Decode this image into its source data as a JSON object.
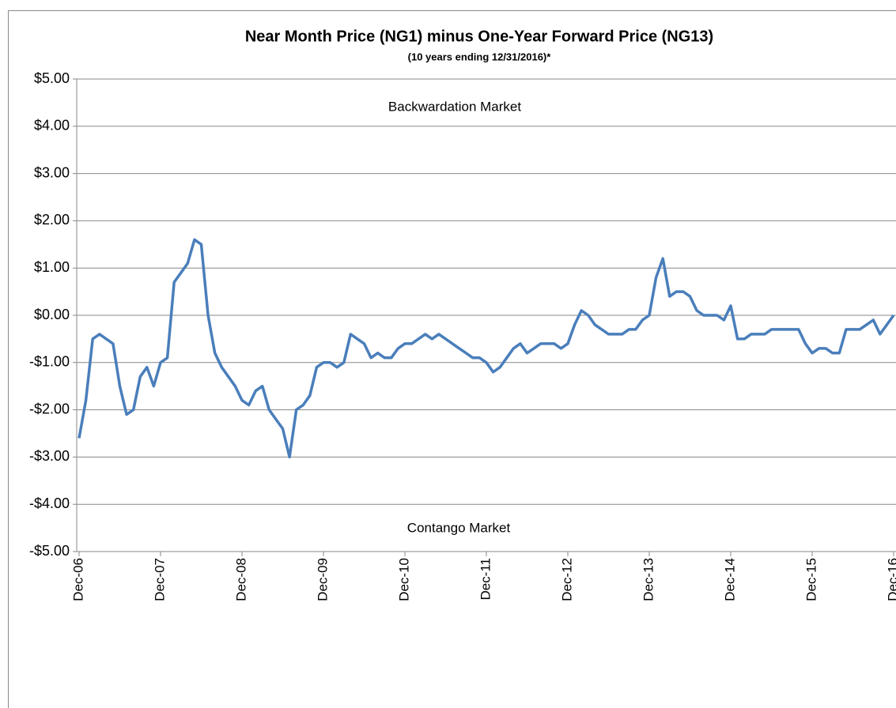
{
  "chart_data": {
    "type": "line",
    "title": "Near Month Price (NG1) minus One-Year Forward Price (NG13)",
    "subtitle": "(10 years ending 12/31/2016)*",
    "annotations": [
      "Backwardation Market",
      "Contango Market"
    ],
    "categories": [
      "Dec-06",
      null,
      null,
      null,
      null,
      null,
      null,
      null,
      null,
      null,
      null,
      null,
      "Dec-07",
      null,
      null,
      null,
      null,
      null,
      null,
      null,
      null,
      null,
      null,
      null,
      "Dec-08",
      null,
      null,
      null,
      null,
      null,
      null,
      null,
      null,
      null,
      null,
      null,
      "Dec-09",
      null,
      null,
      null,
      null,
      null,
      null,
      null,
      null,
      null,
      null,
      null,
      "Dec-10",
      null,
      null,
      null,
      null,
      null,
      null,
      null,
      null,
      null,
      null,
      null,
      "Dec-11",
      null,
      null,
      null,
      null,
      null,
      null,
      null,
      null,
      null,
      null,
      null,
      "Dec-12",
      null,
      null,
      null,
      null,
      null,
      null,
      null,
      null,
      null,
      null,
      null,
      "Dec-13",
      null,
      null,
      null,
      null,
      null,
      null,
      null,
      null,
      null,
      null,
      null,
      "Dec-14",
      null,
      null,
      null,
      null,
      null,
      null,
      null,
      null,
      null,
      null,
      null,
      "Dec-15",
      null,
      null,
      null,
      null,
      null,
      null,
      null,
      null,
      null,
      null,
      null,
      "Dec-16"
    ],
    "series": [
      {
        "name": "NG1 minus NG13",
        "color": "#4a7ebb",
        "values": [
          -2.6,
          -1.8,
          -0.5,
          -0.4,
          -0.5,
          -0.6,
          -1.5,
          -2.1,
          -2.0,
          -1.3,
          -1.1,
          -1.5,
          -1.0,
          -0.9,
          0.7,
          0.9,
          1.1,
          1.6,
          1.5,
          0.0,
          -0.8,
          -1.1,
          -1.3,
          -1.5,
          -1.8,
          -1.9,
          -1.6,
          -1.5,
          -2.0,
          -2.2,
          -2.4,
          -3.0,
          -2.0,
          -1.9,
          -1.7,
          -1.1,
          -1.0,
          -1.0,
          -1.1,
          -1.0,
          -0.4,
          -0.5,
          -0.6,
          -0.9,
          -0.8,
          -0.9,
          -0.9,
          -0.7,
          -0.6,
          -0.6,
          -0.5,
          -0.4,
          -0.5,
          -0.4,
          -0.5,
          -0.6,
          -0.7,
          -0.8,
          -0.9,
          -0.9,
          -1.0,
          -1.2,
          -1.1,
          -0.9,
          -0.7,
          -0.6,
          -0.8,
          -0.7,
          -0.6,
          -0.6,
          -0.6,
          -0.7,
          -0.6,
          -0.2,
          0.1,
          0.0,
          -0.2,
          -0.3,
          -0.4,
          -0.4,
          -0.4,
          -0.3,
          -0.3,
          -0.1,
          0.0,
          0.8,
          1.2,
          0.4,
          0.5,
          0.5,
          0.4,
          0.1,
          0.0,
          0.0,
          0.0,
          -0.1,
          0.2,
          -0.5,
          -0.5,
          -0.4,
          -0.4,
          -0.4,
          -0.3,
          -0.3,
          -0.3,
          -0.3,
          -0.3,
          -0.6,
          -0.8,
          -0.7,
          -0.7,
          -0.8,
          -0.8,
          -0.3,
          -0.3,
          -0.3,
          -0.2,
          -0.1,
          -0.4,
          -0.2,
          0.0
        ]
      }
    ],
    "ylim": [
      -5,
      5
    ],
    "yticks": [
      {
        "value": 5,
        "label": "$5.00"
      },
      {
        "value": 4,
        "label": "$4.00"
      },
      {
        "value": 3,
        "label": "$3.00"
      },
      {
        "value": 2,
        "label": "$2.00"
      },
      {
        "value": 1,
        "label": "$1.00"
      },
      {
        "value": 0,
        "label": "$0.00"
      },
      {
        "value": -1,
        "label": "-$1.00"
      },
      {
        "value": -2,
        "label": "-$2.00"
      },
      {
        "value": -3,
        "label": "-$3.00"
      },
      {
        "value": -4,
        "label": "-$4.00"
      },
      {
        "value": -5,
        "label": "-$5.00"
      }
    ],
    "grid": true
  }
}
